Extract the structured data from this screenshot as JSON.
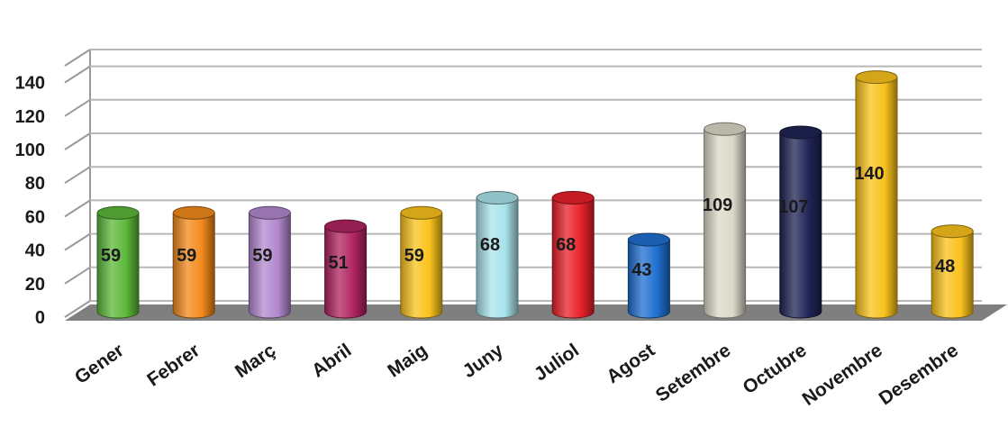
{
  "chart_data": {
    "type": "bar",
    "style": "3d-cylinder",
    "categories": [
      "Gener",
      "Febrer",
      "Març",
      "Abril",
      "Maig",
      "Juny",
      "Juliol",
      "Agost",
      "Setembre",
      "Octubre",
      "Novembre",
      "Desembre"
    ],
    "values": [
      59,
      59,
      59,
      51,
      59,
      68,
      68,
      43,
      109,
      107,
      140,
      48
    ],
    "data_labels": [
      "59",
      "59",
      "59",
      "51",
      "59",
      "68",
      "68",
      "43",
      "109",
      "107",
      "140",
      "48"
    ],
    "colors": [
      "#5cb83a",
      "#f28a1c",
      "#b288cf",
      "#b0245f",
      "#f9c21c",
      "#a8e3ea",
      "#e8202a",
      "#1f6fd0",
      "#dcd9c8",
      "#1f2454",
      "#f9c21c",
      "#f9c21c"
    ],
    "yticks": [
      "0",
      "20",
      "40",
      "60",
      "80",
      "100",
      "120",
      "140"
    ],
    "ylim": [
      0,
      150
    ],
    "grid": true,
    "legend": "none",
    "title": "",
    "xlabel": "",
    "ylabel": ""
  }
}
